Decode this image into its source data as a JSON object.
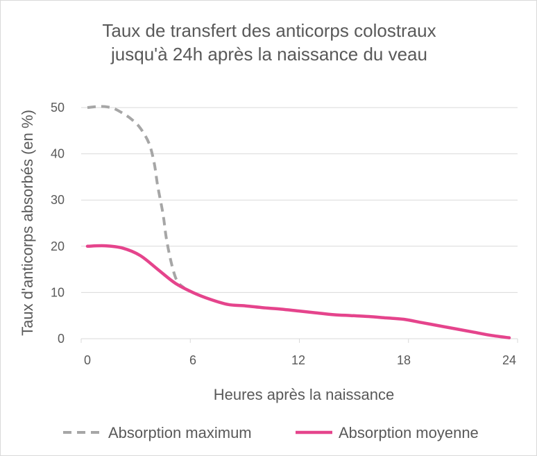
{
  "chart_data": {
    "type": "line",
    "title_lines": [
      "Taux de transfert des anticorps colostraux",
      "jusqu'à 24h après la naissance du veau"
    ],
    "xlabel": "Heures après la naissance",
    "ylabel": "Taux d'anticorps absorbés (en %)",
    "xlim": [
      0,
      24
    ],
    "ylim": [
      0,
      50
    ],
    "xticks": [
      "0",
      "6",
      "12",
      "18",
      "24"
    ],
    "yticks": [
      "0",
      "10",
      "20",
      "30",
      "40",
      "50"
    ],
    "grid": "horizontal",
    "legend_position": "bottom",
    "series": [
      {
        "name": "Absorption maximum",
        "color": "#a6a6a6",
        "dash": true,
        "points": [
          [
            0,
            50
          ],
          [
            0.5,
            50.2
          ],
          [
            1,
            50.2
          ],
          [
            1.5,
            49.8
          ],
          [
            2,
            48.8
          ],
          [
            2.5,
            47.5
          ],
          [
            3,
            45.6
          ],
          [
            3.5,
            42.3
          ],
          [
            3.8,
            38
          ],
          [
            4,
            33
          ],
          [
            4.3,
            27
          ],
          [
            4.5,
            21.5
          ],
          [
            4.8,
            16
          ],
          [
            5.1,
            12.5
          ],
          [
            5.5,
            11
          ]
        ]
      },
      {
        "name": "Absorption moyenne",
        "color": "#e5448c",
        "dash": false,
        "points": [
          [
            0,
            20
          ],
          [
            1,
            20.1
          ],
          [
            2,
            19.6
          ],
          [
            3,
            18
          ],
          [
            4,
            15
          ],
          [
            5,
            12
          ],
          [
            6,
            10
          ],
          [
            7,
            8.5
          ],
          [
            8,
            7.4
          ],
          [
            9,
            7.1
          ],
          [
            10,
            6.7
          ],
          [
            11,
            6.4
          ],
          [
            12,
            6
          ],
          [
            13,
            5.6
          ],
          [
            14,
            5.2
          ],
          [
            15,
            5
          ],
          [
            16,
            4.8
          ],
          [
            17,
            4.5
          ],
          [
            18,
            4.2
          ],
          [
            19,
            3.5
          ],
          [
            20,
            2.8
          ],
          [
            21,
            2.1
          ],
          [
            22,
            1.4
          ],
          [
            23,
            0.7
          ],
          [
            24,
            0.2
          ]
        ]
      }
    ]
  }
}
